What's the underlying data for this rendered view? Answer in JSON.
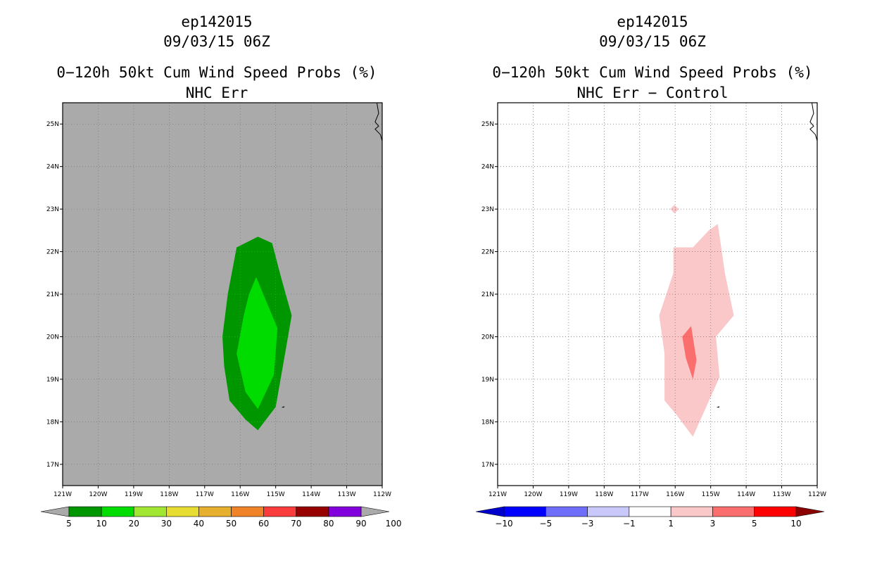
{
  "chart_data": [
    {
      "type": "contour-map",
      "storm_id": "ep142015",
      "datetime": "09/03/15 06Z",
      "title": "0−120h 50kt Cum Wind Speed Probs (%)",
      "subtitle": "NHC Err",
      "lon_range": [
        -121,
        -112
      ],
      "lat_range": [
        16.5,
        25.5
      ],
      "x_ticks": [
        "121W",
        "120W",
        "119W",
        "118W",
        "117W",
        "116W",
        "115W",
        "114W",
        "113W",
        "112W"
      ],
      "y_ticks": [
        "17N",
        "18N",
        "19N",
        "20N",
        "21N",
        "22N",
        "23N",
        "24N",
        "25N"
      ],
      "background_color": "#aaaaaa",
      "grid": true,
      "colorbar": {
        "labels": [
          "5",
          "10",
          "20",
          "30",
          "40",
          "50",
          "60",
          "70",
          "80",
          "90",
          "100"
        ],
        "colors": [
          "#009600",
          "#00dc00",
          "#a0e632",
          "#e6dc32",
          "#e6af2d",
          "#f08228",
          "#fa3c3c",
          "#960000",
          "#8200dc"
        ]
      },
      "contours": [
        {
          "level": "5-10%",
          "color": "#009600",
          "polygon": [
            [
              -115.5,
              22.35
            ],
            [
              -115.1,
              22.2
            ],
            [
              -114.85,
              21.4
            ],
            [
              -114.55,
              20.5
            ],
            [
              -114.8,
              19.3
            ],
            [
              -115,
              18.35
            ],
            [
              -115.5,
              17.8
            ],
            [
              -115.85,
              18.05
            ],
            [
              -116.3,
              18.5
            ],
            [
              -116.45,
              19.3
            ],
            [
              -116.5,
              20
            ],
            [
              -116.35,
              21
            ],
            [
              -116.1,
              22.1
            ]
          ]
        },
        {
          "level": "10-20%",
          "color": "#00dc00",
          "polygon": [
            [
              -115.55,
              21.4
            ],
            [
              -115.25,
              20.8
            ],
            [
              -114.95,
              20.2
            ],
            [
              -115.05,
              19.1
            ],
            [
              -115.5,
              18.3
            ],
            [
              -115.85,
              18.7
            ],
            [
              -116.1,
              19.6
            ],
            [
              -115.9,
              20.5
            ],
            [
              -115.75,
              21
            ]
          ]
        }
      ],
      "markers": [
        {
          "lon": -114.8,
          "lat": 18.35
        }
      ]
    },
    {
      "type": "contour-map",
      "storm_id": "ep142015",
      "datetime": "09/03/15 06Z",
      "title": "0−120h 50kt Cum Wind Speed Probs (%)",
      "subtitle": "NHC Err − Control",
      "lon_range": [
        -121,
        -112
      ],
      "lat_range": [
        16.5,
        25.5
      ],
      "x_ticks": [
        "121W",
        "120W",
        "119W",
        "118W",
        "117W",
        "116W",
        "115W",
        "114W",
        "113W",
        "112W"
      ],
      "y_ticks": [
        "17N",
        "18N",
        "19N",
        "20N",
        "21N",
        "22N",
        "23N",
        "24N",
        "25N"
      ],
      "background_color": "#ffffff",
      "grid": true,
      "colorbar": {
        "labels": [
          "−10",
          "−5",
          "−3",
          "−1",
          "1",
          "3",
          "5",
          "10"
        ],
        "colors": [
          "#0000cd",
          "#0000ff",
          "#6e6efa",
          "#c8c8fa",
          "#ffffff",
          "#fac8c8",
          "#fa6e6e",
          "#ff0000",
          "#8b0000"
        ]
      },
      "contours": [
        {
          "level": "1-3",
          "color": "#fac8c8",
          "polygon": [
            [
              -114.8,
              22.65
            ],
            [
              -114.6,
              21.5
            ],
            [
              -114.35,
              20.5
            ],
            [
              -114.85,
              20
            ],
            [
              -114.75,
              19.05
            ],
            [
              -115.1,
              18.4
            ],
            [
              -115.5,
              17.65
            ],
            [
              -115.95,
              18.15
            ],
            [
              -116.3,
              18.5
            ],
            [
              -116.3,
              19.6
            ],
            [
              -116.45,
              20.5
            ],
            [
              -116.05,
              21.5
            ],
            [
              -116.05,
              22.1
            ],
            [
              -115.5,
              22.1
            ],
            [
              -115.05,
              22.5
            ]
          ]
        },
        {
          "level": "1-3",
          "color": "#fac8c8",
          "polygon": [
            [
              -116.02,
              23.1
            ],
            [
              -115.9,
              23
            ],
            [
              -116.02,
              22.9
            ],
            [
              -116.14,
              23
            ]
          ]
        },
        {
          "level": "3-5",
          "color": "#fa6e6e",
          "polygon": [
            [
              -115.55,
              20.25
            ],
            [
              -115.4,
              19.45
            ],
            [
              -115.5,
              19
            ],
            [
              -115.7,
              19.5
            ],
            [
              -115.8,
              20
            ]
          ]
        }
      ],
      "markers": [
        {
          "lon": -114.8,
          "lat": 18.35
        }
      ]
    }
  ]
}
